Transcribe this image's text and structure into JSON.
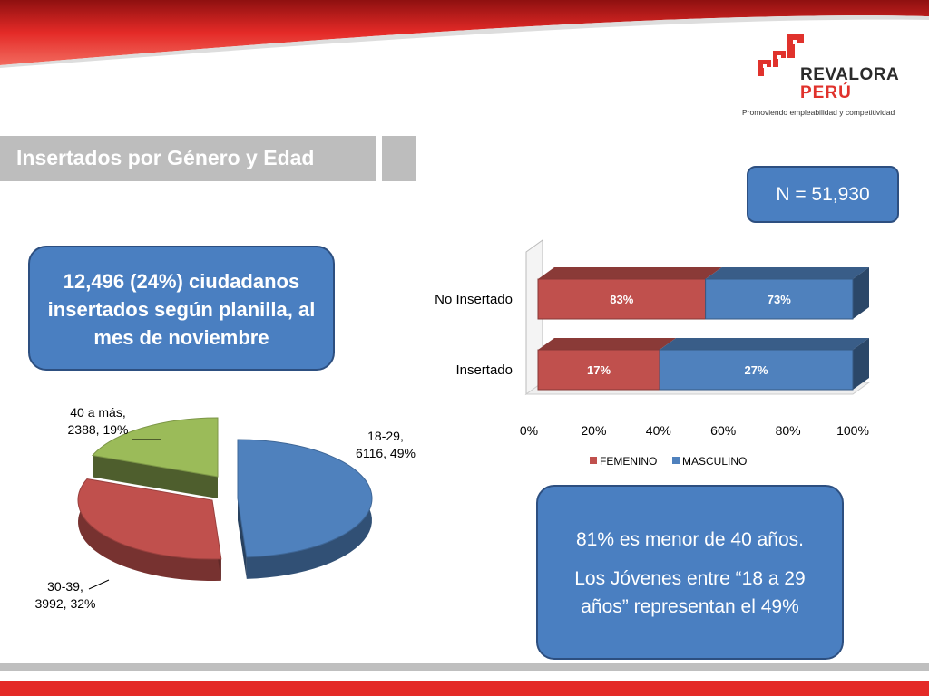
{
  "header": {
    "logo_name": "REVALORA",
    "logo_country": "PERÚ",
    "logo_tagline": "Promoviendo empleabilidad y competitividad",
    "title": "Insertados por Género y Edad"
  },
  "callouts": {
    "n_total": "N = 51,930",
    "insertados_summary": "12,496 (24%) ciudadanos insertados según planilla, al mes de noviembre",
    "age_note_1": "81% es menor de 40 años.",
    "age_note_2": "Los Jóvenes entre “18 a 29 años” representan el 49%"
  },
  "colors": {
    "brand_red": "#e0322c",
    "femenino": "#c0504d",
    "masculino": "#4f81bd",
    "green_slice": "#9bbb59",
    "callout_fill": "#4a7fc1",
    "title_gray": "#bdbdbd"
  },
  "chart_data": [
    {
      "type": "bar",
      "orientation": "horizontal",
      "stacked": "percent",
      "categories": [
        "No Insertado",
        "Insertado"
      ],
      "series": [
        {
          "name": "FEMENINO",
          "values": [
            83,
            17
          ],
          "labels": [
            "83%",
            "17%"
          ],
          "color": "#c0504d"
        },
        {
          "name": "MASCULINO",
          "values": [
            73,
            27
          ],
          "labels": [
            "73%",
            "27%"
          ],
          "color": "#4f81bd"
        }
      ],
      "xticks": [
        "0%",
        "20%",
        "40%",
        "60%",
        "80%",
        "100%"
      ],
      "xlim": [
        0,
        100
      ],
      "legend": "bottom",
      "grid": false
    },
    {
      "type": "pie",
      "slices": [
        {
          "label": "18-29",
          "value": 6116,
          "percent": 49,
          "text": "18-29,\n6116, 49%",
          "color": "#4f81bd"
        },
        {
          "label": "30-39",
          "value": 3992,
          "percent": 32,
          "text": "30-39,\n3992, 32%",
          "color": "#c0504d"
        },
        {
          "label": "40 a más",
          "value": 2388,
          "percent": 19,
          "text": "40 a más,\n2388, 19%",
          "color": "#9bbb59"
        }
      ],
      "exploded": true,
      "legend": "none"
    }
  ]
}
